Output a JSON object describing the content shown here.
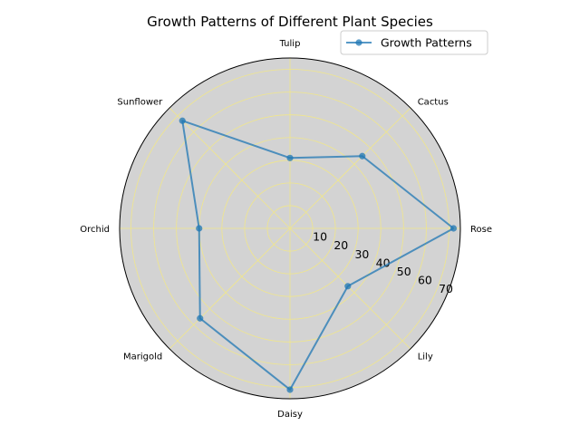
{
  "chart_data": {
    "type": "radar",
    "title": "Growth Patterns of Different Plant Species",
    "categories": [
      "Rose",
      "Cactus",
      "Tulip",
      "Sunflower",
      "Orchid",
      "Marigold",
      "Daisy",
      "Lily"
    ],
    "series": [
      {
        "name": "Growth Patterns",
        "values": [
          72,
          45,
          31,
          67,
          40,
          56,
          71,
          36
        ],
        "color": "#1f77b4"
      }
    ],
    "radial_ticks": [
      10,
      20,
      30,
      40,
      50,
      60,
      70
    ],
    "rlim": [
      0,
      75
    ],
    "grid": true,
    "grid_color": "#f0e68c",
    "plot_background": "#d3d3d3",
    "legend_position": "top-right"
  }
}
